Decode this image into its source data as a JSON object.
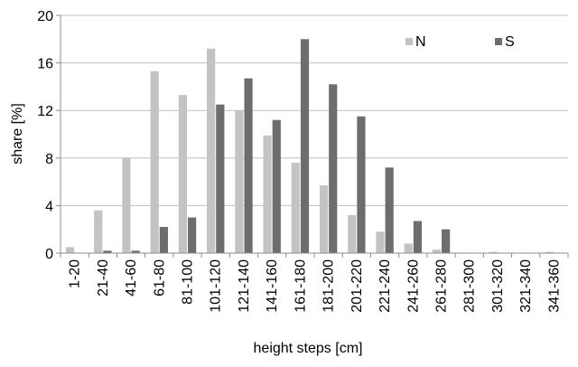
{
  "chart_data": {
    "type": "bar",
    "title": "",
    "xlabel": "height steps [cm]",
    "ylabel": "share [%]",
    "ylim": [
      0,
      20
    ],
    "yticks": [
      0,
      4,
      8,
      12,
      16,
      20
    ],
    "grid": "horizontal",
    "legend_position": "top-right",
    "categories": [
      "1-20",
      "21-40",
      "41-60",
      "61-80",
      "81-100",
      "101-120",
      "121-140",
      "141-160",
      "161-180",
      "181-200",
      "201-220",
      "221-240",
      "241-260",
      "261-280",
      "281-300",
      "301-320",
      "321-340",
      "341-360"
    ],
    "series": [
      {
        "name": "N",
        "color": "#c3c3c3",
        "values": [
          0.5,
          3.6,
          8.0,
          15.3,
          13.3,
          17.2,
          12.0,
          9.9,
          7.6,
          5.7,
          3.2,
          1.8,
          0.8,
          0.3,
          0.0,
          0.1,
          0.0,
          0.1
        ]
      },
      {
        "name": "S",
        "color": "#6d6d6d",
        "values": [
          0.0,
          0.2,
          0.2,
          2.2,
          3.0,
          12.5,
          14.7,
          11.2,
          18.0,
          14.2,
          11.5,
          7.2,
          2.7,
          2.0,
          0.0,
          0.0,
          0.0,
          0.0
        ]
      }
    ]
  }
}
